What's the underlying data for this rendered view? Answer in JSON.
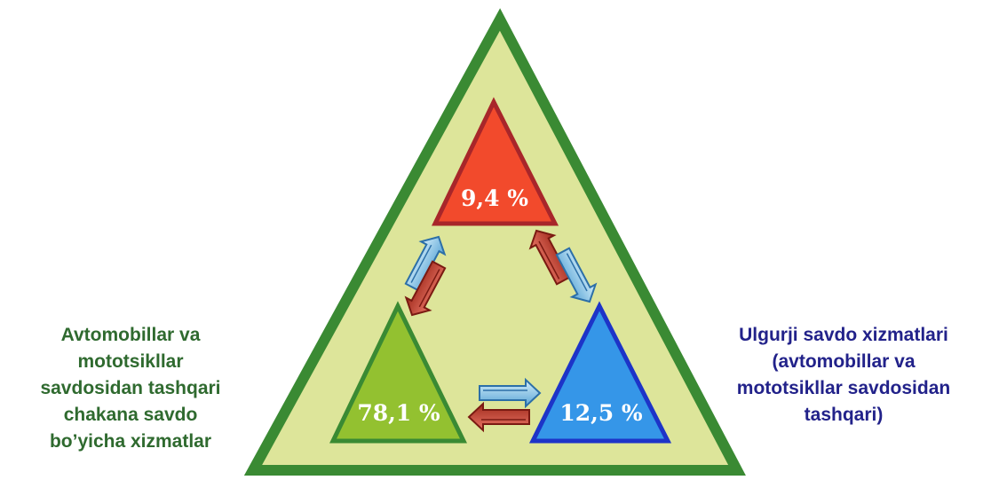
{
  "segments": {
    "top": {
      "value": "9,4 %",
      "color": "#f24a2c",
      "border": "#a8262a"
    },
    "left": {
      "value": "78,1 %",
      "color": "#93c130",
      "border": "#3a8a33",
      "label": "Avtomobillar va\nmototsikllar\nsavdosidan tashqari\nchakana savdo\nbo’yicha xizmatlar"
    },
    "right": {
      "value": "12,5 %",
      "color": "#3596e8",
      "border": "#1d34c8",
      "label": "Ulgurji savdo xizmatlari\n(avtomobillar va\nmototsikllar savdosidan\ntashqari)"
    }
  },
  "outer_triangle": {
    "fill": "#dde59a",
    "border": "#3a8a33"
  },
  "arrows": {
    "blue": "#8cc8e8",
    "red": "#c0392b"
  }
}
